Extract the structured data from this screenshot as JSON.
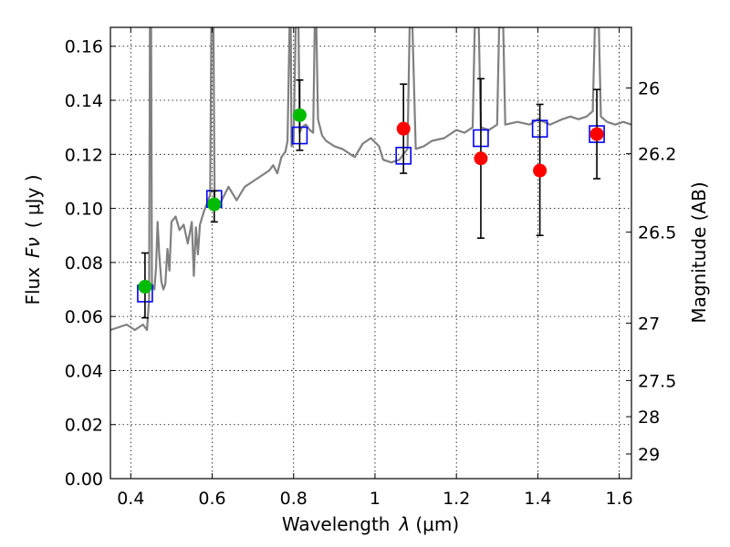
{
  "chart_data": {
    "type": "scatter",
    "xlabel_text": "Wavelength",
    "xlabel_symbol": "λ",
    "xlabel_unit": "(μm)",
    "ylabel_text": "Flux",
    "ylabel_symbol": "Fν",
    "ylabel_unit": "( μJy )",
    "y2label": "Magnitude (AB)",
    "xlim": [
      0.35,
      1.63
    ],
    "ylim": [
      0.0,
      0.167
    ],
    "grid": true,
    "x_ticks": [
      0.4,
      0.6,
      0.8,
      1.0,
      1.2,
      1.4,
      1.6
    ],
    "x_tick_labels": [
      "0.4",
      "0.6",
      "0.8",
      "1",
      "1.2",
      "1.4",
      "1.6"
    ],
    "y_ticks": [
      0.0,
      0.02,
      0.04,
      0.06,
      0.08,
      0.1,
      0.12,
      0.14,
      0.16
    ],
    "y_tick_labels": [
      "0.00",
      "0.02",
      "0.04",
      "0.06",
      "0.08",
      "0.10",
      "0.12",
      "0.14",
      "0.16"
    ],
    "y2_ticks": [
      {
        "mag": 26,
        "label": "26"
      },
      {
        "mag": 26.2,
        "label": "26.2"
      },
      {
        "mag": 26.5,
        "label": "26.5"
      },
      {
        "mag": 27,
        "label": "27"
      },
      {
        "mag": 27.5,
        "label": "27.5"
      },
      {
        "mag": 28,
        "label": "28"
      },
      {
        "mag": 29,
        "label": "29"
      }
    ],
    "colors": {
      "spectrum": "#808080",
      "model_box": "#0000ff",
      "green_point": "#00bb00",
      "red_point": "#ff0000",
      "errorbar": "#000000"
    },
    "series": [
      {
        "type": "line",
        "points": [
          [
            0.35,
            0.055
          ],
          [
            0.37,
            0.056
          ],
          [
            0.39,
            0.057
          ],
          [
            0.41,
            0.055
          ],
          [
            0.42,
            0.056
          ],
          [
            0.43,
            0.057
          ],
          [
            0.435,
            0.056
          ],
          [
            0.44,
            0.055
          ],
          [
            0.445,
            0.0665
          ],
          [
            0.447,
            0.167
          ],
          [
            0.45,
            0.167
          ],
          [
            0.452,
            0.072
          ],
          [
            0.458,
            0.07
          ],
          [
            0.462,
            0.078
          ],
          [
            0.466,
            0.095
          ],
          [
            0.47,
            0.083
          ],
          [
            0.475,
            0.073
          ],
          [
            0.48,
            0.07
          ],
          [
            0.485,
            0.072
          ],
          [
            0.49,
            0.085
          ],
          [
            0.495,
            0.077
          ],
          [
            0.5,
            0.095
          ],
          [
            0.51,
            0.097
          ],
          [
            0.52,
            0.092
          ],
          [
            0.53,
            0.094
          ],
          [
            0.54,
            0.087
          ],
          [
            0.55,
            0.095
          ],
          [
            0.555,
            0.075
          ],
          [
            0.56,
            0.093
          ],
          [
            0.565,
            0.083
          ],
          [
            0.57,
            0.094
          ],
          [
            0.58,
            0.099
          ],
          [
            0.59,
            0.103
          ],
          [
            0.595,
            0.105
          ],
          [
            0.598,
            0.167
          ],
          [
            0.603,
            0.167
          ],
          [
            0.606,
            0.103
          ],
          [
            0.62,
            0.102
          ],
          [
            0.64,
            0.108
          ],
          [
            0.66,
            0.103
          ],
          [
            0.68,
            0.108
          ],
          [
            0.7,
            0.11
          ],
          [
            0.72,
            0.112
          ],
          [
            0.74,
            0.114
          ],
          [
            0.75,
            0.116
          ],
          [
            0.76,
            0.113
          ],
          [
            0.77,
            0.119
          ],
          [
            0.78,
            0.121
          ],
          [
            0.785,
            0.125
          ],
          [
            0.79,
            0.167
          ],
          [
            0.793,
            0.167
          ],
          [
            0.795,
            0.123
          ],
          [
            0.8,
            0.124
          ],
          [
            0.805,
            0.167
          ],
          [
            0.812,
            0.167
          ],
          [
            0.815,
            0.128
          ],
          [
            0.82,
            0.13
          ],
          [
            0.83,
            0.131
          ],
          [
            0.84,
            0.129
          ],
          [
            0.848,
            0.128
          ],
          [
            0.852,
            0.167
          ],
          [
            0.856,
            0.167
          ],
          [
            0.86,
            0.133
          ],
          [
            0.87,
            0.127
          ],
          [
            0.88,
            0.125
          ],
          [
            0.9,
            0.123
          ],
          [
            0.92,
            0.122
          ],
          [
            0.95,
            0.119
          ],
          [
            0.97,
            0.124
          ],
          [
            0.99,
            0.126
          ],
          [
            1.01,
            0.123
          ],
          [
            1.02,
            0.118
          ],
          [
            1.04,
            0.117
          ],
          [
            1.06,
            0.118
          ],
          [
            1.08,
            0.122
          ],
          [
            1.085,
            0.167
          ],
          [
            1.092,
            0.167
          ],
          [
            1.1,
            0.122
          ],
          [
            1.12,
            0.123
          ],
          [
            1.14,
            0.125
          ],
          [
            1.17,
            0.126
          ],
          [
            1.2,
            0.129
          ],
          [
            1.22,
            0.128
          ],
          [
            1.24,
            0.13
          ],
          [
            1.245,
            0.167
          ],
          [
            1.255,
            0.167
          ],
          [
            1.26,
            0.13
          ],
          [
            1.28,
            0.129
          ],
          [
            1.3,
            0.131
          ],
          [
            1.305,
            0.167
          ],
          [
            1.315,
            0.167
          ],
          [
            1.32,
            0.131
          ],
          [
            1.35,
            0.132
          ],
          [
            1.38,
            0.131
          ],
          [
            1.4,
            0.133
          ],
          [
            1.43,
            0.131
          ],
          [
            1.46,
            0.133
          ],
          [
            1.48,
            0.134
          ],
          [
            1.5,
            0.133
          ],
          [
            1.52,
            0.134
          ],
          [
            1.535,
            0.136
          ],
          [
            1.54,
            0.167
          ],
          [
            1.55,
            0.167
          ],
          [
            1.555,
            0.134
          ],
          [
            1.57,
            0.132
          ],
          [
            1.59,
            0.131
          ],
          [
            1.61,
            0.132
          ],
          [
            1.63,
            0.131
          ]
        ]
      },
      {
        "type": "boxes",
        "points": [
          {
            "x": 0.435,
            "y": 0.0685
          },
          {
            "x": 0.605,
            "y": 0.1035
          },
          {
            "x": 0.815,
            "y": 0.127
          },
          {
            "x": 1.07,
            "y": 0.1195
          },
          {
            "x": 1.26,
            "y": 0.126
          },
          {
            "x": 1.405,
            "y": 0.1295
          },
          {
            "x": 1.545,
            "y": 0.1275
          }
        ]
      },
      {
        "type": "errorbar-points",
        "points": [
          {
            "x": 0.435,
            "y": 0.071,
            "ylo": 0.0595,
            "yhi": 0.0835,
            "color": "green"
          },
          {
            "x": 0.605,
            "y": 0.1015,
            "ylo": 0.095,
            "yhi": 0.1065,
            "color": "green"
          },
          {
            "x": 0.815,
            "y": 0.1345,
            "ylo": 0.1215,
            "yhi": 0.1475,
            "color": "green"
          },
          {
            "x": 1.07,
            "y": 0.1295,
            "ylo": 0.113,
            "yhi": 0.146,
            "color": "red"
          },
          {
            "x": 1.26,
            "y": 0.1185,
            "ylo": 0.089,
            "yhi": 0.148,
            "color": "red"
          },
          {
            "x": 1.405,
            "y": 0.114,
            "ylo": 0.09,
            "yhi": 0.1385,
            "color": "red"
          },
          {
            "x": 1.545,
            "y": 0.1275,
            "ylo": 0.111,
            "yhi": 0.144,
            "color": "red"
          }
        ]
      }
    ]
  }
}
